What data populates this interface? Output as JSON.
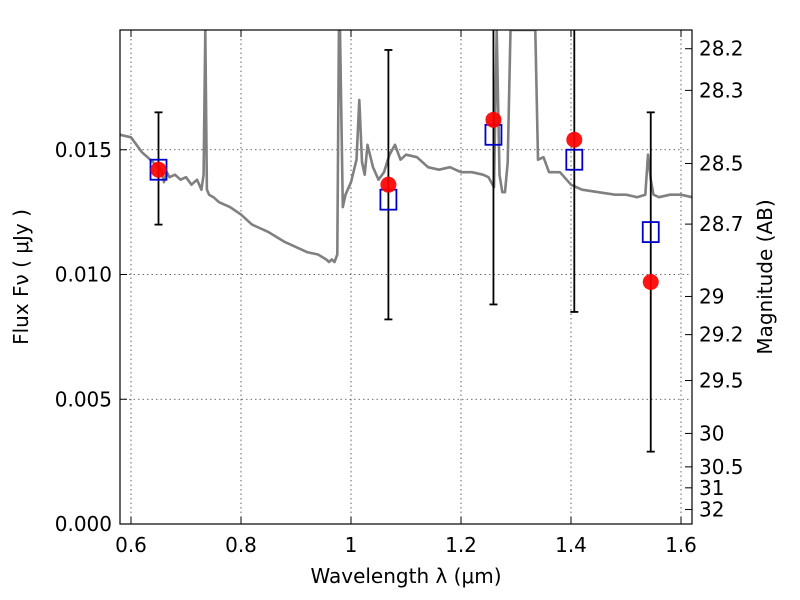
{
  "chart_data": {
    "type": "scatter",
    "xlabel": "Wavelength  λ (μm)",
    "ylabel": "Flux  Fν  ( μJy )",
    "y2label": "Magnitude (AB)",
    "xlim": [
      0.58,
      1.62
    ],
    "ylim": [
      0.0,
      0.0198
    ],
    "x_ticks": [
      0.6,
      0.8,
      1.0,
      1.2,
      1.4,
      1.6
    ],
    "x_tick_labels": [
      "0.6",
      "0.8",
      "1",
      "1.2",
      "1.4",
      "1.6"
    ],
    "y_ticks": [
      0.0,
      0.005,
      0.01,
      0.015
    ],
    "y_tick_labels": [
      "0.000",
      "0.005",
      "0.010",
      "0.015"
    ],
    "y2_ticks": [
      {
        "label": "28.2",
        "flux": 0.01905
      },
      {
        "label": "28.3",
        "flux": 0.01738
      },
      {
        "label": "28.5",
        "flux": 0.01445
      },
      {
        "label": "28.7",
        "flux": 0.01202
      },
      {
        "label": "29",
        "flux": 0.00912
      },
      {
        "label": "29.2",
        "flux": 0.00759
      },
      {
        "label": "29.5",
        "flux": 0.00575
      },
      {
        "label": "30",
        "flux": 0.00363
      },
      {
        "label": "30.5",
        "flux": 0.00229
      },
      {
        "label": "31",
        "flux": 0.00145
      },
      {
        "label": "32",
        "flux": 0.00058
      }
    ],
    "grid": true,
    "colors": {
      "observed": "#ff0000",
      "model_band": "#0000cc",
      "template": "#808080",
      "errorbar": "#000000"
    },
    "series": [
      {
        "type": "line",
        "x": [
          0.58,
          0.6,
          0.61,
          0.62,
          0.63,
          0.64,
          0.655,
          0.66,
          0.665,
          0.67,
          0.68,
          0.69,
          0.7,
          0.71,
          0.72,
          0.728,
          0.732,
          0.735,
          0.738,
          0.742,
          0.75,
          0.76,
          0.78,
          0.8,
          0.82,
          0.85,
          0.88,
          0.9,
          0.92,
          0.94,
          0.955,
          0.96,
          0.965,
          0.97,
          0.975,
          0.978,
          0.98,
          0.985,
          0.99,
          1.0,
          1.01,
          1.015,
          1.02,
          1.025,
          1.03,
          1.04,
          1.05,
          1.06,
          1.07,
          1.08,
          1.09,
          1.1,
          1.12,
          1.14,
          1.16,
          1.18,
          1.2,
          1.22,
          1.24,
          1.25,
          1.26,
          1.265,
          1.27,
          1.275,
          1.28,
          1.285,
          1.29,
          1.3,
          1.32,
          1.33,
          1.335,
          1.34,
          1.35,
          1.36,
          1.38,
          1.4,
          1.42,
          1.45,
          1.48,
          1.5,
          1.52,
          1.535,
          1.54,
          1.545,
          1.55,
          1.56,
          1.58,
          1.6,
          1.62
        ],
        "y": [
          0.0156,
          0.0155,
          0.0152,
          0.0149,
          0.0147,
          0.0145,
          0.0142,
          0.0137,
          0.0141,
          0.0139,
          0.014,
          0.0138,
          0.0139,
          0.0136,
          0.0138,
          0.0134,
          0.014,
          0.0198,
          0.0134,
          0.0132,
          0.0131,
          0.0129,
          0.0127,
          0.0124,
          0.012,
          0.0117,
          0.0113,
          0.0111,
          0.0109,
          0.0108,
          0.0106,
          0.0105,
          0.0106,
          0.0105,
          0.0108,
          0.0198,
          0.0198,
          0.0127,
          0.0132,
          0.0137,
          0.0146,
          0.017,
          0.0145,
          0.014,
          0.0152,
          0.0143,
          0.0138,
          0.0141,
          0.0148,
          0.0152,
          0.0146,
          0.0148,
          0.0147,
          0.0143,
          0.0142,
          0.0143,
          0.0141,
          0.0141,
          0.014,
          0.0139,
          0.0135,
          0.0198,
          0.014,
          0.0133,
          0.0133,
          0.0145,
          0.0198,
          0.0198,
          0.0198,
          0.0198,
          0.0198,
          0.0146,
          0.0147,
          0.0141,
          0.0141,
          0.0136,
          0.0134,
          0.0133,
          0.0132,
          0.0132,
          0.0131,
          0.0132,
          0.0148,
          0.0138,
          0.0132,
          0.0131,
          0.0132,
          0.0132,
          0.0131
        ]
      },
      {
        "type": "scatter",
        "marker": "circle",
        "x": [
          0.65,
          1.068,
          1.259,
          1.406,
          1.545
        ],
        "y": [
          0.0142,
          0.0136,
          0.0162,
          0.0154,
          0.0097
        ],
        "yerr_low": [
          0.012,
          0.0082,
          0.0088,
          0.0085,
          0.0029
        ],
        "yerr_high": [
          0.0165,
          0.019,
          0.0199,
          0.0199,
          0.0165
        ]
      },
      {
        "type": "scatter",
        "marker": "open-square",
        "x": [
          0.65,
          1.068,
          1.259,
          1.406,
          1.545
        ],
        "y": [
          0.0142,
          0.013,
          0.0156,
          0.0146,
          0.0117
        ]
      }
    ]
  }
}
